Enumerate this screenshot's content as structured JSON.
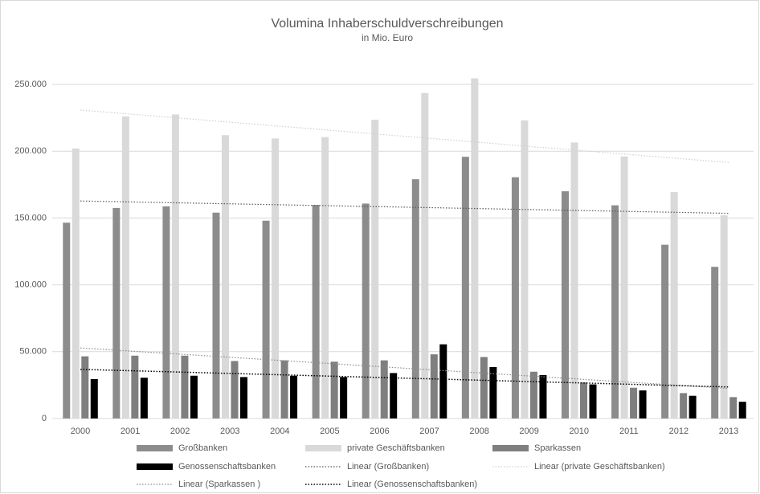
{
  "chart_data": {
    "type": "bar",
    "title": "Volumina Inhaberschuldverschreibungen",
    "subtitle": "in Mio. Euro",
    "categories": [
      "2000",
      "2001",
      "2002",
      "2003",
      "2004",
      "2005",
      "2006",
      "2007",
      "2008",
      "2009",
      "2010",
      "2011",
      "2012",
      "2013"
    ],
    "series": [
      {
        "name": "Großbanken",
        "color": "#8c8c8c",
        "values": [
          146500,
          157500,
          158700,
          154000,
          148000,
          159800,
          160800,
          179000,
          195800,
          180500,
          170000,
          159500,
          130000,
          113500
        ],
        "trendline": {
          "name": "Linear (Großbanken)",
          "color": "#595959"
        }
      },
      {
        "name": "private Geschäftsbanken",
        "color": "#d9d9d9",
        "values": [
          202000,
          226000,
          227500,
          212000,
          209500,
          210500,
          223500,
          243500,
          254500,
          223000,
          206500,
          196000,
          169500,
          152000
        ],
        "trendline": {
          "name": "Linear (private Geschäftsbanken)",
          "color": "#cfcfcf"
        }
      },
      {
        "name": "Sparkassen",
        "color": "#7f7f7f",
        "values": [
          46500,
          47000,
          47000,
          43000,
          43500,
          42500,
          43500,
          48000,
          46000,
          35000,
          27000,
          23000,
          19000,
          16000
        ],
        "trendline": {
          "name": "Linear (Sparkassen )",
          "color": "#8c8c8c"
        }
      },
      {
        "name": "Genossenschaftsbanken",
        "color": "#000000",
        "values": [
          29500,
          30500,
          32000,
          31000,
          32000,
          31000,
          34000,
          55500,
          38500,
          32500,
          25500,
          21000,
          17000,
          12500
        ],
        "trendline": {
          "name": "Linear (Genossenschaftsbanken)",
          "color": "#000000"
        }
      }
    ],
    "ylim": [
      0,
      265000
    ],
    "yticks": [
      0,
      {
        "value": 50000,
        "label": "50.000"
      },
      {
        "value": 100000,
        "label": "100.000"
      },
      {
        "value": 150000,
        "label": "150.000"
      },
      {
        "value": 200000,
        "label": "200.000"
      },
      {
        "value": 250000,
        "label": "250.000"
      }
    ],
    "grid": true,
    "legend": "bottom"
  }
}
